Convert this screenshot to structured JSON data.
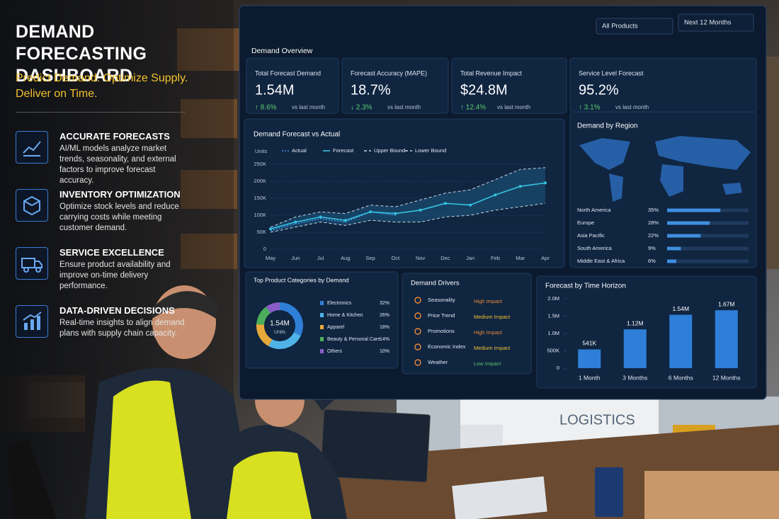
{
  "header": {
    "title": "DEMAND FORECASTING DASHBOARD",
    "tagline": "Predict Demand. Optimize Supply. Deliver on Time."
  },
  "features": [
    {
      "title": "ACCURATE FORECASTS",
      "text": "AI/ML models analyze market trends, seasonality, and external factors to improve forecast accuracy."
    },
    {
      "title": "INVENTORY OPTIMIZATION",
      "text": "Optimize stock levels and reduce carrying costs while meeting customer demand."
    },
    {
      "title": "SERVICE EXCELLENCE",
      "text": "Ensure product availability and improve on-time delivery performance."
    },
    {
      "title": "DATA-DRIVEN DECISIONS",
      "text": "Real-time insights to align demand plans with supply chain capacity."
    }
  ],
  "dashboard": {
    "filters": [
      "All Products",
      "Next 12 Months"
    ],
    "overview_title": "Demand Overview",
    "kpis": [
      {
        "label": "Total Forecast Demand",
        "value": "1.54M",
        "change": "↑ 8.6%",
        "note": "vs last month"
      },
      {
        "label": "Forecast Accuracy (MAPE)",
        "value": "18.7%",
        "change": "↓ 2.3%",
        "note": "vs last month"
      },
      {
        "label": "Total Revenue Impact",
        "value": "$24.8M",
        "change": "↑ 12.4%",
        "note": "vs last month"
      },
      {
        "label": "Service Level Forecast",
        "value": "95.2%",
        "change": "↑ 3.1%",
        "note": "vs last month"
      }
    ],
    "forecast_chart": {
      "type": "line",
      "title": "Demand Forecast vs Actual",
      "y_label": "Units",
      "categories": [
        "May",
        "Jun",
        "Jul",
        "Aug",
        "Sep",
        "Oct",
        "Nov",
        "Dec",
        "Jan",
        "Feb",
        "Mar",
        "Apr"
      ],
      "ylim": [
        0,
        250000
      ],
      "yticks": [
        0,
        {
          "value": 50000,
          "label": "50K"
        },
        {
          "value": 100000,
          "label": "100K"
        },
        {
          "value": 150000,
          "label": "150K"
        },
        {
          "value": 200000,
          "label": "200K"
        },
        {
          "value": 250000,
          "label": "250K"
        }
      ],
      "series": [
        {
          "name": "Actual",
          "color": "#3f8fe0",
          "dash": "2 2",
          "values": [
            55000,
            75000,
            90000,
            80000,
            110000,
            100000,
            null,
            null,
            null,
            null,
            null,
            null
          ]
        },
        {
          "name": "Forecast",
          "color": "#35c3e0",
          "dash": "",
          "values": [
            60000,
            80000,
            95000,
            85000,
            110000,
            105000,
            115000,
            135000,
            130000,
            160000,
            185000,
            195000
          ]
        },
        {
          "name": "Upper Bound",
          "color": "#c8d3e0",
          "dash": "4 3",
          "values": [
            65000,
            95000,
            110000,
            105000,
            130000,
            125000,
            145000,
            165000,
            175000,
            205000,
            235000,
            240000
          ]
        },
        {
          "name": "Lower Bound",
          "color": "#c8d3e0",
          "dash": "4 3",
          "values": [
            50000,
            65000,
            80000,
            70000,
            85000,
            80000,
            80000,
            95000,
            100000,
            115000,
            125000,
            135000
          ]
        }
      ],
      "band_color": "#1d5a80"
    },
    "region_chart": {
      "type": "bar",
      "title": "Demand by Region",
      "categories": [
        "North America",
        "Europe",
        "Asia Pacific",
        "South America",
        "Middle East & Africa"
      ],
      "values": [
        35,
        28,
        22,
        9,
        6
      ],
      "value_labels": [
        "35%",
        "28%",
        "22%",
        "9%",
        "6%"
      ],
      "color": "#3f8fe0"
    },
    "category_chart": {
      "type": "pie",
      "title": "Top Product Categories by Demand",
      "center_value": "1.54M",
      "center_label": "Units",
      "categories": [
        "Electronics",
        "Home & Kitchen",
        "Apparel",
        "Beauty & Personal Care",
        "Others"
      ],
      "values": [
        32,
        26,
        18,
        14,
        10
      ],
      "value_labels": [
        "32%",
        "26%",
        "18%",
        "14%",
        "10%"
      ],
      "colors": [
        "#2f7fd8",
        "#4fb3e8",
        "#e6a93a",
        "#4aae5a",
        "#8a5cc8"
      ]
    },
    "drivers": {
      "title": "Demand Drivers",
      "rows": [
        {
          "name": "Seasonality",
          "impact": "High Impact",
          "color": "#f08a3a"
        },
        {
          "name": "Price Trend",
          "impact": "Medium Impact",
          "color": "#f2c230"
        },
        {
          "name": "Promotions",
          "impact": "High Impact",
          "color": "#f08a3a"
        },
        {
          "name": "Economic Index",
          "impact": "Medium Impact",
          "color": "#f2c230"
        },
        {
          "name": "Weather",
          "impact": "Low Impact",
          "color": "#5bc06a"
        }
      ]
    },
    "horizon_chart": {
      "type": "bar",
      "title": "Forecast by Time Horizon",
      "categories": [
        "1 Month",
        "3 Months",
        "6 Months",
        "12 Months"
      ],
      "values": [
        541000,
        1120000,
        1540000,
        1670000
      ],
      "value_labels": [
        "541K",
        "1.12M",
        "1.54M",
        "1.67M"
      ],
      "ylim": [
        0,
        2000000
      ],
      "yticks": [
        0,
        {
          "value": 500000,
          "label": "500K"
        },
        {
          "value": 1000000,
          "label": "1.0M"
        },
        {
          "value": 1500000,
          "label": "1.5M"
        },
        {
          "value": 2000000,
          "label": "2.0M"
        }
      ],
      "color": "#2f7fd8"
    }
  },
  "scene": {
    "truck_label": "LOGISTICS"
  }
}
